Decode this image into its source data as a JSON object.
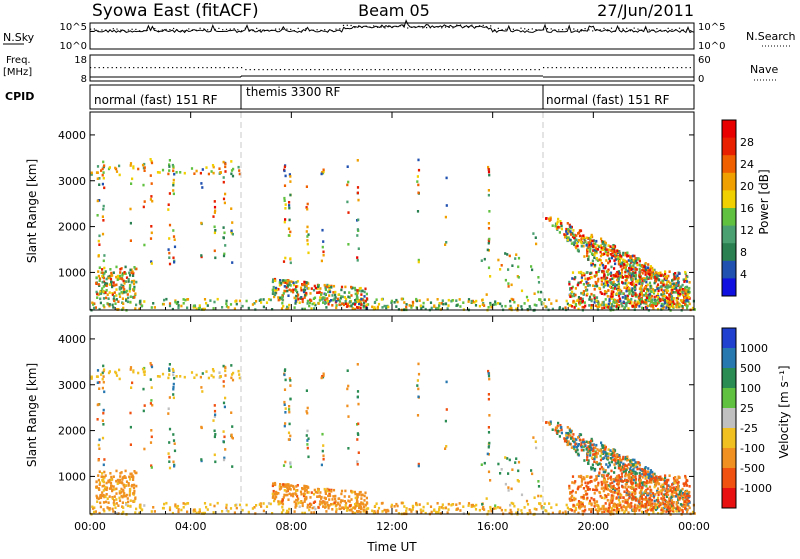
{
  "header": {
    "title": "Syowa East (fitACF)",
    "beam": "Beam 05",
    "date": "27/Jun/2011"
  },
  "colors": {
    "power_scale": [
      "#1010e0",
      "#2050b0",
      "#2a8050",
      "#4aa070",
      "#60c040",
      "#f0d000",
      "#f0a000",
      "#f06000",
      "#e82000",
      "#e80000"
    ],
    "velocity_scale": [
      "#2040d0",
      "#2878b0",
      "#2a8c52",
      "#60c040",
      "#c0c0c0",
      "#f0c020",
      "#f09020",
      "#f05010",
      "#e81010"
    ],
    "noise_line": "#000000",
    "sep_line": "#c8c8c8"
  },
  "strip_nsky": {
    "left_label": "N.Sky",
    "right_label": "N.Search",
    "left_ticks": [
      "10^5",
      "10^0"
    ],
    "right_ticks": [
      "10^5",
      "10^0"
    ]
  },
  "strip_freq": {
    "left_label_top": "Freq.",
    "left_label_unit": "[MHz]",
    "right_label": "Nave",
    "left_ticks": [
      "18",
      "8"
    ],
    "right_ticks": [
      "60",
      "0"
    ]
  },
  "cpid": {
    "label": "CPID",
    "segments": [
      {
        "start": 0,
        "end": 6,
        "text": "normal (fast) 151 RF"
      },
      {
        "start": 6,
        "end": 18,
        "text": "themis 3300 RF"
      },
      {
        "start": 18,
        "end": 24,
        "text": "normal (fast) 151 RF"
      }
    ]
  },
  "xaxis": {
    "label": "Time UT",
    "ticks": [
      "00:00",
      "04:00",
      "08:00",
      "12:00",
      "16:00",
      "20:00",
      "00:00"
    ]
  },
  "chart_data": [
    {
      "type": "heatmap",
      "title": "",
      "xlabel": "",
      "ylabel": "Slant Range [km]",
      "x_unit": "hours UT",
      "xlim": [
        0,
        24
      ],
      "ylim": [
        180,
        4500
      ],
      "yticks": [
        "1000",
        "2000",
        "3000",
        "4000"
      ],
      "colorbar_label": "Power [dB]",
      "colorbar_ticks": [
        "4",
        "8",
        "12",
        "16",
        "20",
        "24",
        "28"
      ],
      "value_range": [
        0,
        30
      ]
    },
    {
      "type": "heatmap",
      "title": "",
      "xlabel": "Time UT",
      "ylabel": "Slant Range [km]",
      "x_unit": "hours UT",
      "xlim": [
        0,
        24
      ],
      "ylim": [
        180,
        4500
      ],
      "yticks": [
        "1000",
        "2000",
        "3000",
        "4000"
      ],
      "colorbar_label": "Velocity [m s⁻¹]",
      "colorbar_ticks": [
        "1000",
        "500",
        "100",
        "25",
        "-25",
        "-100",
        "-500",
        "-1000"
      ],
      "value_range": [
        -1200,
        1200
      ]
    }
  ]
}
